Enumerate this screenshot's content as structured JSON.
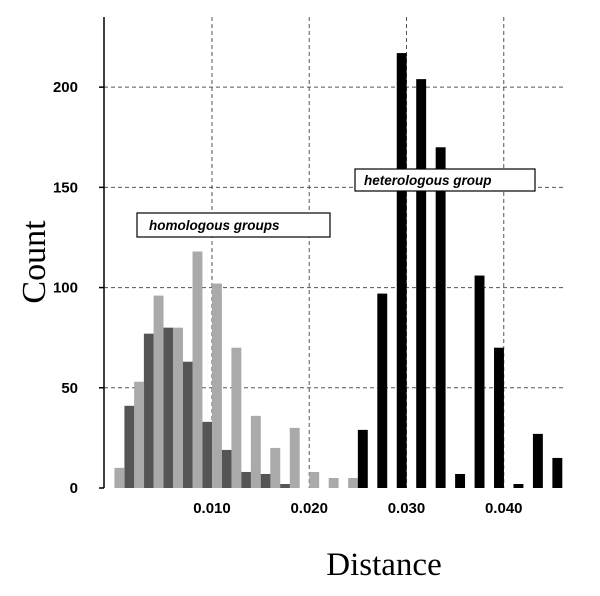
{
  "chart_data": {
    "type": "bar",
    "title": "",
    "xlabel": "Distance",
    "ylabel": "Count",
    "xlim": [
      -0.0011,
      0.0464
    ],
    "ylim": [
      0,
      235
    ],
    "x_ticks": [
      0.01,
      0.02,
      0.03,
      0.04
    ],
    "x_tick_labels": [
      "0.010",
      "0.020",
      "0.030",
      "0.040"
    ],
    "y_ticks": [
      0,
      50,
      100,
      150,
      200
    ],
    "y_tick_labels": [
      "0",
      "50",
      "100",
      "150",
      "200"
    ],
    "grid": "dashed, vertical at x-ticks and horizontal at y-ticks",
    "annotations": [
      {
        "text": "homologous groups"
      },
      {
        "text": "heterologous group"
      }
    ],
    "bar_width": 0.00102,
    "series": [
      {
        "color": "#555555",
        "x": [
          0.0,
          0.001,
          0.003,
          0.005,
          0.007,
          0.009,
          0.011,
          0.013,
          0.015,
          0.017
        ],
        "values": [
          10,
          41,
          77,
          80,
          63,
          33,
          19,
          8,
          7,
          2
        ]
      },
      {
        "color": "#aaaaaa",
        "x": [
          0.0,
          0.002,
          0.004,
          0.006,
          0.008,
          0.01,
          0.012,
          0.014,
          0.016,
          0.018,
          0.02,
          0.022,
          0.024
        ],
        "values": [
          10,
          53,
          96,
          80,
          118,
          102,
          70,
          36,
          20,
          30,
          8,
          5,
          5
        ]
      },
      {
        "color": "#000000",
        "x": [
          0.025,
          0.027,
          0.029,
          0.031,
          0.033,
          0.035,
          0.037,
          0.039,
          0.041,
          0.043,
          0.045
        ],
        "values": [
          29,
          97,
          217,
          204,
          170,
          7,
          106,
          70,
          2,
          27,
          15
        ]
      }
    ]
  }
}
